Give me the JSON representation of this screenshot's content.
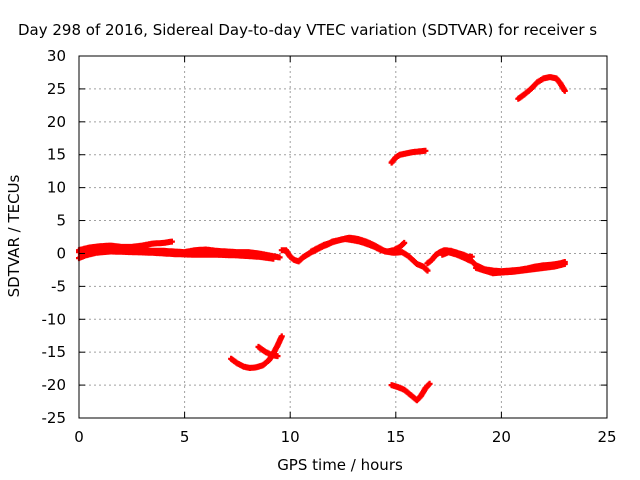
{
  "chart_data": {
    "type": "scatter",
    "title": "Day 298 of 2016, Sidereal Day-to-day VTEC variation (SDTVAR) for receiver s",
    "xlabel": "GPS time / hours",
    "ylabel": "SDTVAR / TECUs",
    "xlim": [
      0,
      25
    ],
    "ylim": [
      -25,
      30
    ],
    "xticks": [
      0,
      5,
      10,
      15,
      20,
      25
    ],
    "yticks": [
      -25,
      -20,
      -15,
      -10,
      -5,
      0,
      5,
      10,
      15,
      20,
      25,
      30
    ],
    "grid": true,
    "series": [
      {
        "name": "SDTVAR",
        "color": "#ff0000",
        "marker": "plus",
        "segments": [
          [
            [
              0,
              0.5
            ],
            [
              0.5,
              0.9
            ],
            [
              1,
              1.1
            ],
            [
              1.5,
              1.2
            ],
            [
              2,
              1.0
            ],
            [
              2.5,
              1.0
            ],
            [
              3,
              1.2
            ],
            [
              3.5,
              1.5
            ],
            [
              4,
              1.6
            ],
            [
              4.4,
              1.8
            ]
          ],
          [
            [
              0,
              0.2
            ],
            [
              0.5,
              0.5
            ],
            [
              1,
              0.8
            ],
            [
              1.5,
              0.9
            ],
            [
              2,
              0.8
            ],
            [
              2.5,
              0.7
            ],
            [
              3,
              0.5
            ],
            [
              3.5,
              0.4
            ],
            [
              4,
              0.4
            ],
            [
              4.5,
              0.3
            ],
            [
              5,
              0.2
            ],
            [
              5.5,
              0.5
            ],
            [
              6,
              0.6
            ],
            [
              6.5,
              0.4
            ],
            [
              7,
              0.3
            ],
            [
              7.5,
              0.2
            ],
            [
              8,
              0.2
            ],
            [
              8.5,
              0.0
            ],
            [
              9,
              -0.3
            ],
            [
              9.5,
              -0.6
            ]
          ],
          [
            [
              0,
              -0.7
            ],
            [
              0.3,
              -0.3
            ],
            [
              0.8,
              0.1
            ],
            [
              1.5,
              0.3
            ],
            [
              2.5,
              0.2
            ],
            [
              3.5,
              0.1
            ],
            [
              4.5,
              -0.1
            ],
            [
              5.5,
              -0.2
            ],
            [
              6.5,
              -0.2
            ],
            [
              7.5,
              -0.3
            ],
            [
              8.5,
              -0.5
            ],
            [
              9.2,
              -0.8
            ]
          ],
          [
            [
              9.6,
              0.5
            ],
            [
              9.8,
              0.5
            ],
            [
              10,
              -0.5
            ],
            [
              10.2,
              -1.0
            ],
            [
              10.4,
              -1.2
            ],
            [
              10.6,
              -0.6
            ],
            [
              10.8,
              -0.2
            ],
            [
              11,
              0.2
            ],
            [
              11.2,
              0.5
            ],
            [
              11.5,
              1.0
            ],
            [
              11.8,
              1.4
            ],
            [
              12,
              1.8
            ],
            [
              12.3,
              2.0
            ],
            [
              12.6,
              2.2
            ],
            [
              13,
              2.0
            ],
            [
              13.3,
              1.8
            ],
            [
              13.6,
              1.5
            ],
            [
              14,
              1.0
            ],
            [
              14.3,
              0.5
            ],
            [
              14.6,
              0.3
            ],
            [
              14.9,
              0.5
            ],
            [
              15.2,
              1.0
            ],
            [
              15.4,
              1.6
            ]
          ],
          [
            [
              11,
              0.3
            ],
            [
              11.3,
              0.8
            ],
            [
              11.6,
              1.3
            ],
            [
              12,
              1.7
            ],
            [
              12.4,
              2.1
            ],
            [
              12.8,
              2.4
            ],
            [
              13.2,
              2.2
            ],
            [
              13.6,
              1.8
            ],
            [
              14,
              1.2
            ],
            [
              14.5,
              0.3
            ],
            [
              14.9,
              0.1
            ],
            [
              15.3,
              0.2
            ],
            [
              15.6,
              -0.4
            ],
            [
              15.8,
              -1.0
            ],
            [
              16,
              -1.6
            ],
            [
              16.3,
              -2.0
            ],
            [
              16.5,
              -2.6
            ]
          ],
          [
            [
              16.5,
              -1.5
            ],
            [
              16.7,
              -1.0
            ],
            [
              16.9,
              -0.2
            ],
            [
              17.1,
              0.2
            ],
            [
              17.3,
              0.5
            ],
            [
              17.6,
              0.4
            ],
            [
              17.9,
              0.1
            ],
            [
              18.2,
              -0.2
            ],
            [
              18.4,
              -0.5
            ],
            [
              18.6,
              -0.5
            ]
          ],
          [
            [
              17.2,
              -0.2
            ],
            [
              17.5,
              0.2
            ],
            [
              17.9,
              -0.2
            ],
            [
              18.2,
              -0.6
            ],
            [
              18.6,
              -1.2
            ],
            [
              18.8,
              -1.8
            ],
            [
              19.2,
              -2.4
            ],
            [
              19.6,
              -2.6
            ],
            [
              20,
              -2.7
            ],
            [
              20.4,
              -2.6
            ],
            [
              20.8,
              -2.5
            ],
            [
              21.2,
              -2.3
            ],
            [
              21.6,
              -2.0
            ],
            [
              22,
              -1.8
            ],
            [
              22.4,
              -1.7
            ],
            [
              22.8,
              -1.5
            ],
            [
              23,
              -1.3
            ]
          ],
          [
            [
              18.8,
              -2.2
            ],
            [
              19.2,
              -2.6
            ],
            [
              19.6,
              -3.0
            ],
            [
              20,
              -2.9
            ],
            [
              20.5,
              -2.8
            ],
            [
              21,
              -2.6
            ],
            [
              21.5,
              -2.4
            ],
            [
              22,
              -2.2
            ],
            [
              22.5,
              -2.0
            ],
            [
              23,
              -1.6
            ]
          ],
          [
            [
              14.8,
              13.8
            ],
            [
              15,
              14.6
            ],
            [
              15.2,
              15.0
            ],
            [
              15.5,
              15.2
            ],
            [
              15.8,
              15.4
            ],
            [
              16.1,
              15.5
            ],
            [
              16.4,
              15.6
            ]
          ],
          [
            [
              20.8,
              23.5
            ],
            [
              21.1,
              24.2
            ],
            [
              21.4,
              25.0
            ],
            [
              21.7,
              26.0
            ],
            [
              22,
              26.6
            ],
            [
              22.3,
              26.8
            ],
            [
              22.6,
              26.6
            ],
            [
              22.8,
              25.8
            ],
            [
              23,
              24.7
            ]
          ],
          [
            [
              7.2,
              -16.0
            ],
            [
              7.5,
              -16.7
            ],
            [
              7.8,
              -17.2
            ],
            [
              8.1,
              -17.4
            ],
            [
              8.4,
              -17.3
            ],
            [
              8.7,
              -17.0
            ],
            [
              9,
              -16.2
            ],
            [
              9.2,
              -15.2
            ],
            [
              9.4,
              -14.0
            ],
            [
              9.6,
              -12.6
            ]
          ],
          [
            [
              8.5,
              -14.2
            ],
            [
              8.8,
              -14.9
            ],
            [
              9.1,
              -15.4
            ],
            [
              9.4,
              -15.6
            ]
          ],
          [
            [
              14.8,
              -20.0
            ],
            [
              15.1,
              -20.3
            ],
            [
              15.4,
              -20.7
            ],
            [
              15.7,
              -21.5
            ],
            [
              16,
              -22.3
            ],
            [
              16.2,
              -21.6
            ],
            [
              16.4,
              -20.5
            ],
            [
              16.6,
              -19.8
            ]
          ]
        ]
      }
    ]
  }
}
